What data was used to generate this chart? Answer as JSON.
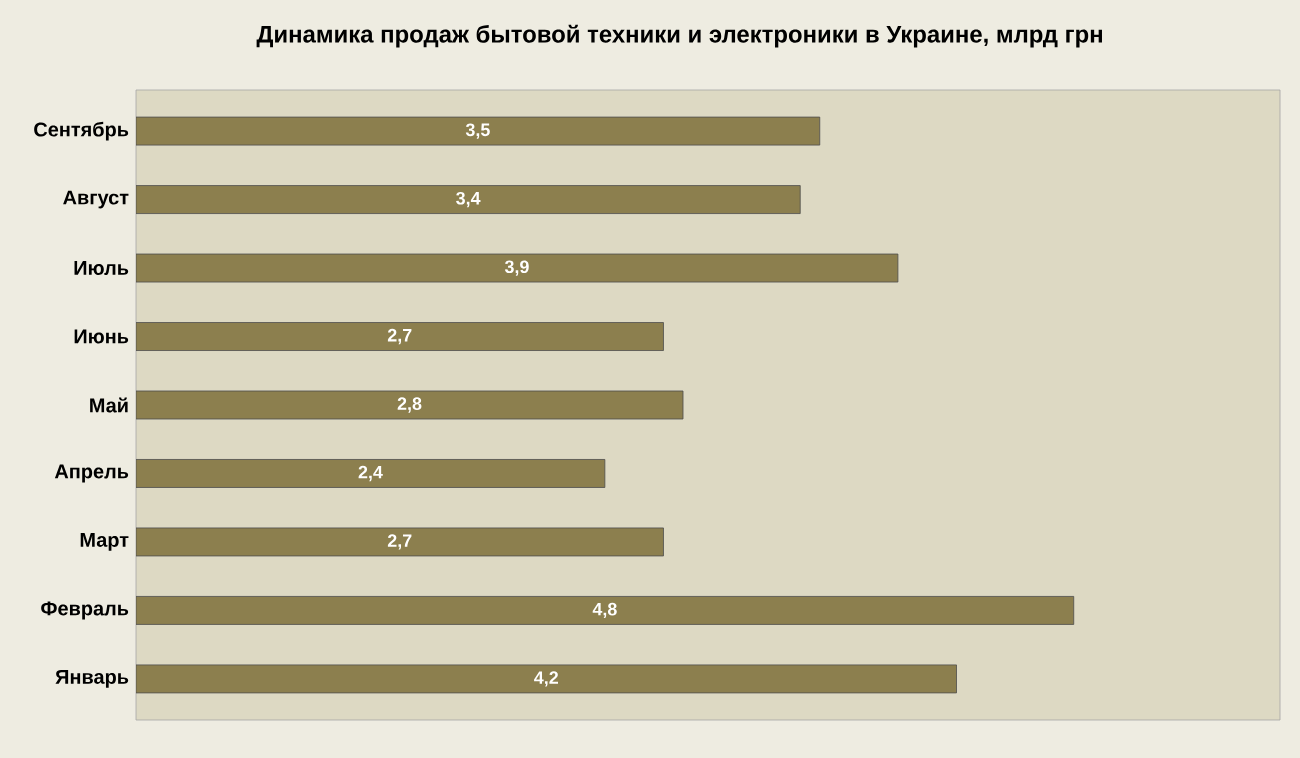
{
  "chart_data": {
    "type": "bar",
    "orientation": "horizontal",
    "title": "Динамика продаж бытовой техники и электроники в Украине, млрд грн",
    "categories": [
      "Сентябрь",
      "Август",
      "Июль",
      "Июнь",
      "Май",
      "Апрель",
      "Март",
      "Февраль",
      "Январь"
    ],
    "values": [
      3.5,
      3.4,
      3.9,
      2.7,
      2.8,
      2.4,
      2.7,
      4.8,
      4.2
    ],
    "value_labels": [
      "3,5",
      "3,4",
      "3,9",
      "2,7",
      "2,8",
      "2,4",
      "2,7",
      "4,8",
      "4,2"
    ],
    "color": "#8c7f4e",
    "tick_labels": "y"
  }
}
